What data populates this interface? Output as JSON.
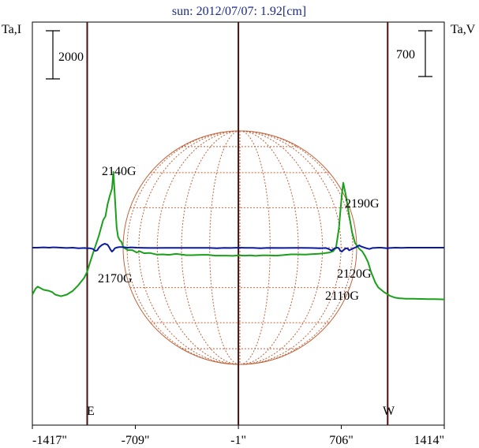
{
  "chart_data": {
    "type": "line",
    "title": "sun: 2012/07/07: 1.92[cm]",
    "left_axis_label": "Ta,I",
    "right_axis_label": "Ta,V",
    "left_scale_bar": "2000",
    "right_scale_bar": "700",
    "x_tick_labels": [
      "-1417\"",
      "-709\"",
      "-1\"",
      "706\"",
      "1414\""
    ],
    "x_ticks": [
      -1417,
      -709,
      -1,
      706,
      1414
    ],
    "xlim": [
      -1417,
      1414
    ],
    "limb_markers": [
      {
        "label": "E",
        "x": -1040
      },
      {
        "label": "W",
        "x": 1025
      }
    ],
    "center_marker_x": -1,
    "series": [
      {
        "color": "#1aa01a",
        "x": [
          -1417,
          -1395,
          -1380,
          -1340,
          -1300,
          -1280,
          -1260,
          -1220,
          -1180,
          -1140,
          -1100,
          -1060,
          -1040,
          -1020,
          -990,
          -960,
          -930,
          -915,
          -900,
          -885,
          -870,
          -860,
          -850,
          -838,
          -828,
          -815,
          -805,
          -790,
          -775,
          -760,
          -730,
          -700,
          -680,
          -650,
          -610,
          -560,
          -520,
          -480,
          -430,
          -400,
          -360,
          -320,
          -260,
          -210,
          -160,
          -120,
          -80,
          -40,
          -1,
          40,
          80,
          120,
          160,
          200,
          260,
          300,
          360,
          400,
          460,
          500,
          540,
          560,
          580,
          600,
          625,
          650,
          670,
          690,
          700,
          710,
          720,
          740,
          760,
          780,
          800,
          830,
          850,
          870,
          890,
          910,
          940,
          960,
          980,
          1000,
          1020,
          1040,
          1070,
          1100,
          1150,
          1200,
          1250,
          1300,
          1350,
          1414
        ],
        "values": [
          -1950,
          -1700,
          -1620,
          -1750,
          -1800,
          -1850,
          -1950,
          -2020,
          -1950,
          -1800,
          -1550,
          -1250,
          -1000,
          -600,
          -50,
          500,
          1150,
          1300,
          1800,
          2150,
          2450,
          3150,
          2150,
          850,
          450,
          300,
          250,
          0,
          -50,
          -100,
          -100,
          -200,
          -150,
          -230,
          -220,
          -290,
          -280,
          -300,
          -260,
          -280,
          -310,
          -310,
          -300,
          -300,
          -330,
          -330,
          -330,
          -340,
          -320,
          -330,
          -320,
          -340,
          -320,
          -320,
          -330,
          -310,
          -280,
          -280,
          -290,
          -270,
          -260,
          -250,
          -240,
          -220,
          -200,
          -150,
          0,
          800,
          1500,
          2200,
          2700,
          2100,
          1350,
          650,
          200,
          -50,
          -150,
          -350,
          -600,
          -1000,
          -1450,
          -1650,
          -1750,
          -1850,
          -1920,
          -2000,
          -2070,
          -2100,
          -2120,
          -2120,
          -2130,
          -2140,
          -2140,
          -2150
        ]
      },
      {
        "color": "#0a1aa0",
        "x": [
          -1417,
          -1380,
          -1340,
          -1300,
          -1280,
          -1260,
          -1220,
          -1180,
          -1140,
          -1100,
          -1060,
          -1040,
          -1020,
          -1000,
          -985,
          -970,
          -960,
          -950,
          -940,
          -920,
          -900,
          -890,
          -880,
          -870,
          -860,
          -850,
          -840,
          -830,
          -820,
          -800,
          -780,
          -760,
          -740,
          -700,
          -650,
          -600,
          -500,
          -400,
          -300,
          -200,
          -150,
          -100,
          -50,
          -1,
          50,
          100,
          150,
          200,
          300,
          400,
          500,
          560,
          600,
          620,
          640,
          650,
          660,
          670,
          680,
          690,
          700,
          710,
          720,
          730,
          740,
          750,
          760,
          770,
          780,
          790,
          800,
          810,
          820,
          830,
          840,
          860,
          880,
          900,
          920,
          940,
          960,
          980,
          1000,
          1020,
          1040,
          1080,
          1120,
          1160,
          1200,
          1300,
          1414
        ],
        "values": [
          0,
          0,
          5,
          0,
          5,
          5,
          0,
          -5,
          0,
          -10,
          -5,
          -10,
          -10,
          -20,
          -50,
          -40,
          0,
          20,
          40,
          60,
          45,
          10,
          -30,
          -60,
          -40,
          -10,
          0,
          5,
          10,
          10,
          5,
          0,
          5,
          0,
          -2,
          -5,
          -2,
          -4,
          -3,
          -4,
          -8,
          -2,
          -5,
          0,
          -4,
          -2,
          -8,
          -3,
          -5,
          -3,
          -5,
          -8,
          -5,
          -20,
          -45,
          -25,
          -10,
          -5,
          0,
          -10,
          -50,
          -60,
          -40,
          -20,
          -10,
          -15,
          -40,
          -30,
          -20,
          -10,
          0,
          10,
          25,
          35,
          20,
          5,
          -10,
          -20,
          -5,
          -2,
          0,
          0,
          -5,
          -10,
          -5,
          0,
          -2,
          0,
          0,
          0,
          0
        ]
      }
    ],
    "annotations": [
      "2140G",
      "2170G",
      "2190G",
      "2120G",
      "2110G"
    ]
  }
}
